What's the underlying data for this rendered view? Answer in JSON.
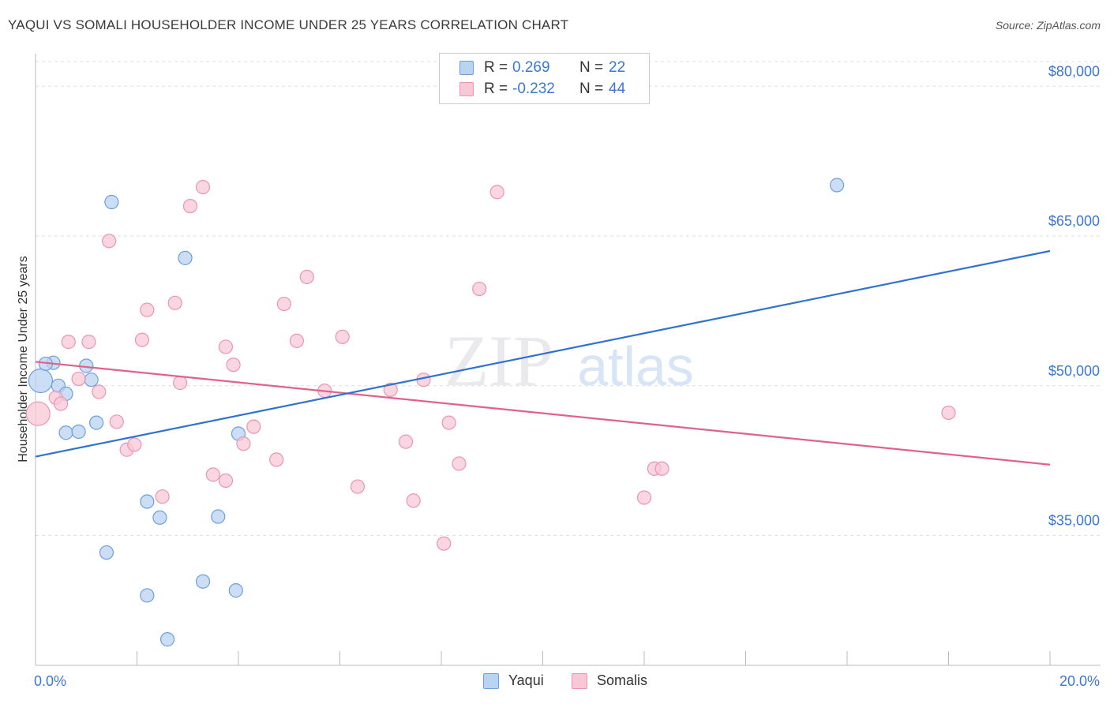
{
  "title": "YAQUI VS SOMALI HOUSEHOLDER INCOME UNDER 25 YEARS CORRELATION CHART",
  "source": "Source: ZipAtlas.com",
  "watermark": {
    "zip": "ZIP",
    "atlas": "atlas"
  },
  "legend": {
    "yaqui": {
      "r_label": "R =",
      "r_value": "0.269",
      "n_label": "N =",
      "n_value": "22"
    },
    "somali": {
      "r_label": "R =",
      "r_value": "-0.232",
      "n_label": "N =",
      "n_value": "44"
    }
  },
  "bottom_legend": {
    "yaqui": "Yaqui",
    "somali": "Somalis"
  },
  "colors": {
    "yaqui_fill": "#b9d3f3",
    "yaqui_stroke": "#6d9fdf",
    "yaqui_line": "#2f72cf",
    "somali_fill": "#f8c8d6",
    "somali_stroke": "#eb95b0",
    "somali_line": "#e0628a",
    "axis_text": "#3c78d0",
    "grid": "#dddddd"
  },
  "chart_data": {
    "type": "scatter",
    "title": "YAQUI VS SOMALI HOUSEHOLDER INCOME UNDER 25 YEARS CORRELATION CHART",
    "xlabel": "",
    "ylabel": "Householder Income Under 25 years",
    "xlim": [
      0,
      20
    ],
    "ylim": [
      22000,
      83500
    ],
    "x_tick_labels": {
      "left": "0.0%",
      "right": "20.0%"
    },
    "y_ticks": [
      {
        "value": 35000,
        "label": "$35,000"
      },
      {
        "value": 50000,
        "label": "$50,000"
      },
      {
        "value": 65000,
        "label": "$65,000"
      },
      {
        "value": 80000,
        "label": "$80,000"
      }
    ],
    "grid": true,
    "legend_position": "top-center",
    "series": [
      {
        "name": "Yaqui",
        "points": [
          [
            0.1,
            50500
          ],
          [
            0.35,
            52300
          ],
          [
            0.45,
            50000
          ],
          [
            0.6,
            49200
          ],
          [
            0.6,
            45300
          ],
          [
            0.85,
            45400
          ],
          [
            1.0,
            52000
          ],
          [
            1.1,
            50600
          ],
          [
            1.2,
            46300
          ],
          [
            1.4,
            33300
          ],
          [
            1.5,
            68400
          ],
          [
            2.2,
            29000
          ],
          [
            2.2,
            38400
          ],
          [
            2.45,
            36800
          ],
          [
            2.6,
            24600
          ],
          [
            2.95,
            62800
          ],
          [
            3.3,
            30400
          ],
          [
            3.6,
            36900
          ],
          [
            3.95,
            29500
          ],
          [
            4.0,
            45200
          ],
          [
            15.8,
            70100
          ],
          [
            0.2,
            52200
          ]
        ],
        "trend": {
          "x": [
            0,
            20
          ],
          "y": [
            42900,
            63500
          ]
        }
      },
      {
        "name": "Somalis",
        "points": [
          [
            0.05,
            47200
          ],
          [
            0.4,
            48800
          ],
          [
            0.5,
            48200
          ],
          [
            0.65,
            54400
          ],
          [
            0.85,
            50700
          ],
          [
            1.05,
            54400
          ],
          [
            1.25,
            49400
          ],
          [
            1.6,
            46400
          ],
          [
            1.45,
            64500
          ],
          [
            1.8,
            43600
          ],
          [
            1.95,
            44100
          ],
          [
            2.1,
            54600
          ],
          [
            2.2,
            57600
          ],
          [
            2.5,
            38900
          ],
          [
            2.75,
            58300
          ],
          [
            2.85,
            50300
          ],
          [
            3.05,
            68000
          ],
          [
            3.3,
            69900
          ],
          [
            3.5,
            41100
          ],
          [
            3.75,
            40500
          ],
          [
            3.75,
            53900
          ],
          [
            3.9,
            52100
          ],
          [
            4.1,
            44200
          ],
          [
            4.3,
            45900
          ],
          [
            4.75,
            42600
          ],
          [
            4.9,
            58200
          ],
          [
            5.15,
            54500
          ],
          [
            5.35,
            60900
          ],
          [
            5.7,
            49500
          ],
          [
            6.05,
            54900
          ],
          [
            6.35,
            39900
          ],
          [
            7.0,
            49600
          ],
          [
            7.3,
            44400
          ],
          [
            7.45,
            38500
          ],
          [
            7.65,
            50600
          ],
          [
            8.05,
            34200
          ],
          [
            8.15,
            46300
          ],
          [
            8.35,
            42200
          ],
          [
            8.75,
            59700
          ],
          [
            9.1,
            69400
          ],
          [
            12.0,
            38800
          ],
          [
            12.2,
            41700
          ],
          [
            12.35,
            41700
          ],
          [
            18.0,
            47300
          ]
        ],
        "trend": {
          "x": [
            0,
            20
          ],
          "y": [
            52400,
            42100
          ]
        }
      }
    ]
  }
}
